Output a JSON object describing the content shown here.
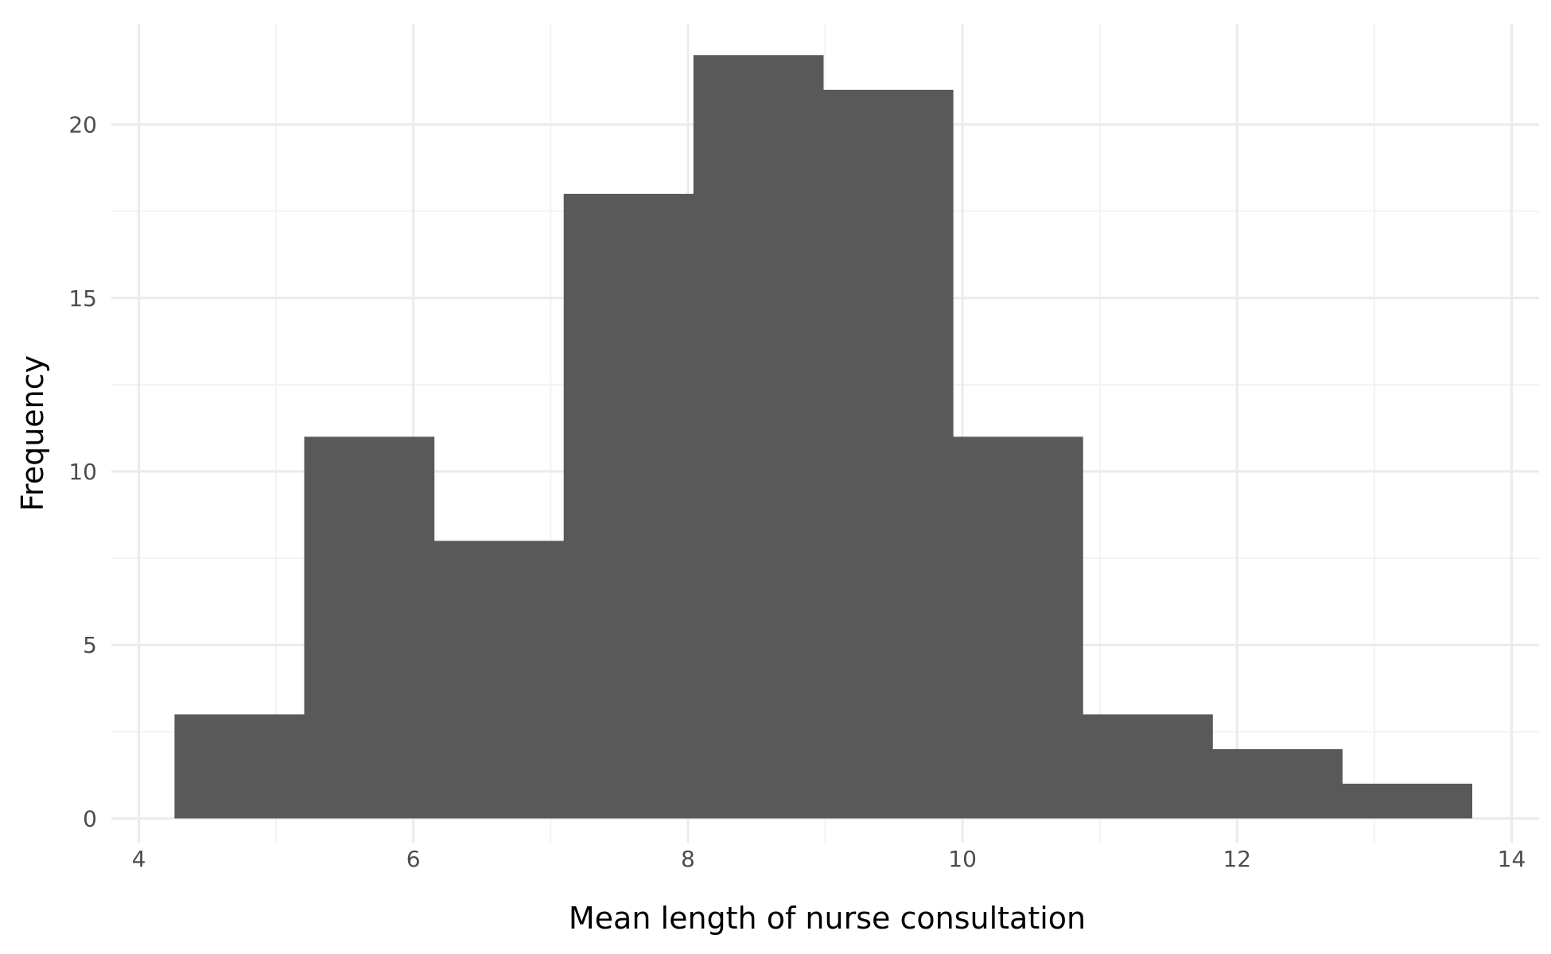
{
  "chart_data": {
    "type": "bar",
    "subtype": "histogram",
    "title": "",
    "xlabel": "Mean length of nurse consultation",
    "ylabel": "Frequency",
    "xlim": [
      3.8,
      14.2
    ],
    "ylim": [
      -0.7,
      22.9
    ],
    "x_ticks": [
      4,
      6,
      8,
      10,
      12,
      14
    ],
    "x_minor_ticks": [
      5,
      7,
      9,
      11,
      13
    ],
    "y_ticks": [
      0,
      5,
      10,
      15,
      20
    ],
    "y_minor_ticks": [
      2.5,
      7.5,
      12.5,
      17.5
    ],
    "x_tick_labels": [
      "4",
      "6",
      "8",
      "10",
      "12",
      "14"
    ],
    "y_tick_labels": [
      "0",
      "5",
      "10",
      "15",
      "20"
    ],
    "grid": true,
    "legend": "none",
    "bins": [
      {
        "start": 4.26,
        "end": 5.205,
        "count": 3
      },
      {
        "start": 5.205,
        "end": 6.15,
        "count": 11
      },
      {
        "start": 6.15,
        "end": 7.095,
        "count": 8
      },
      {
        "start": 7.095,
        "end": 8.04,
        "count": 18
      },
      {
        "start": 8.04,
        "end": 8.985,
        "count": 22
      },
      {
        "start": 8.985,
        "end": 9.93,
        "count": 21
      },
      {
        "start": 9.93,
        "end": 10.875,
        "count": 11
      },
      {
        "start": 10.875,
        "end": 11.82,
        "count": 3
      },
      {
        "start": 11.82,
        "end": 12.765,
        "count": 2
      },
      {
        "start": 12.765,
        "end": 13.71,
        "count": 1
      }
    ],
    "colors": {
      "bar": "#595959",
      "grid_major": "#ebebeb",
      "grid_minor": "#f3f3f3",
      "tick_text": "#4d4d4d",
      "title_text": "#000000",
      "background": "#ffffff"
    }
  }
}
